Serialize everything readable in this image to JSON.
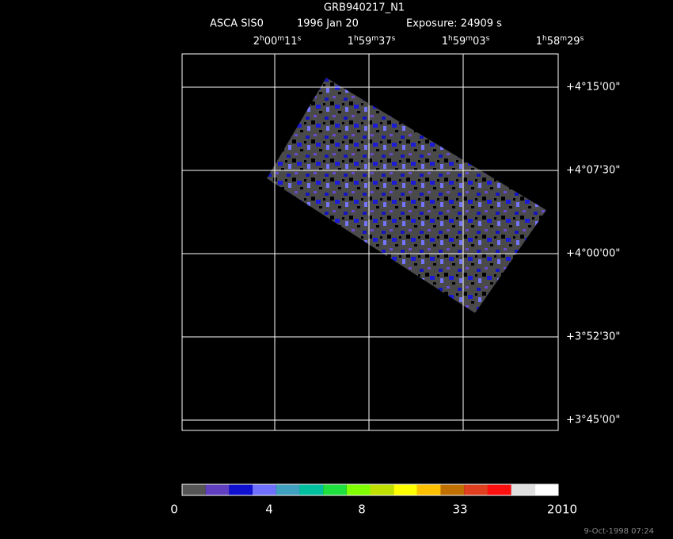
{
  "title": "GRB940217_N1",
  "subtitle": {
    "instrument": "ASCA SIS0",
    "date": "1996 Jan 20",
    "exposure": "Exposure: 24909 s"
  },
  "ra_ticks": [
    [
      "2",
      "h",
      "00",
      "m",
      "11",
      "s"
    ],
    [
      "1",
      "h",
      "59",
      "m",
      "37",
      "s"
    ],
    [
      "1",
      "h",
      "59",
      "m",
      "03",
      "s"
    ],
    [
      "1",
      "h",
      "58",
      "m",
      "29",
      "s"
    ]
  ],
  "dec_ticks": [
    "+4°15'00\"",
    "+4°07'30\"",
    "+4°00'00\"",
    "+3°52'30\"",
    "+3°45'00\""
  ],
  "colorbar": {
    "labels": [
      "0",
      "4",
      "8",
      "33",
      "2010"
    ],
    "colors": [
      "#555555",
      "#6040c0",
      "#1010d0",
      "#7070ff",
      "#40a0c0",
      "#00c0a0",
      "#20e040",
      "#80ff00",
      "#c0e000",
      "#ffff00",
      "#ffc000",
      "#c07000",
      "#e04020",
      "#ff1010",
      "#e0e0e0",
      "#ffffff"
    ]
  },
  "footer": "9-Oct-1998 07:24"
}
